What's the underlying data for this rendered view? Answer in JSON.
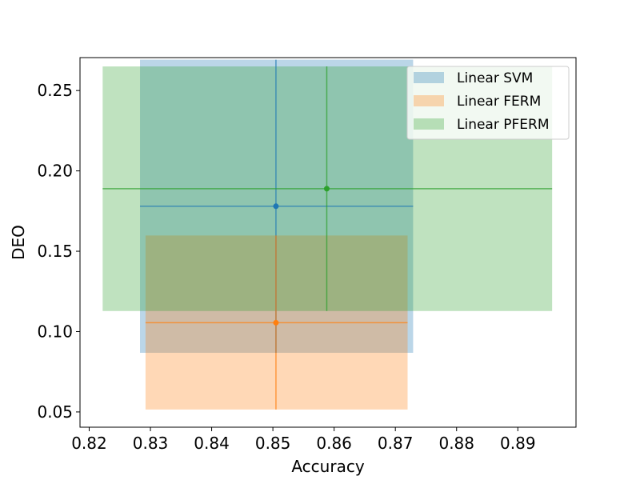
{
  "chart_data": {
    "type": "scatter",
    "title": "",
    "xlabel": "Accuracy",
    "ylabel": "DEO",
    "xlim": [
      0.8185,
      0.8995
    ],
    "ylim": [
      0.0405,
      0.2705
    ],
    "xticks": [
      0.82,
      0.83,
      0.84,
      0.85,
      0.86,
      0.87,
      0.88,
      0.89
    ],
    "xtick_labels": [
      "0.82",
      "0.83",
      "0.84",
      "0.85",
      "0.86",
      "0.87",
      "0.88",
      "0.89"
    ],
    "yticks": [
      0.05,
      0.1,
      0.15,
      0.2,
      0.25
    ],
    "ytick_labels": [
      "0.05",
      "0.10",
      "0.15",
      "0.20",
      "0.25"
    ],
    "grid": false,
    "legend_position": "top-right",
    "series": [
      {
        "name": "Linear SVM",
        "color": "#1f77b4",
        "x": 0.8505,
        "y": 0.178,
        "x_range": [
          0.8283,
          0.8729
        ],
        "y_range": [
          0.0868,
          0.2692
        ]
      },
      {
        "name": "Linear FERM",
        "color": "#ff7f0e",
        "x": 0.8505,
        "y": 0.1055,
        "x_range": [
          0.8292,
          0.872
        ],
        "y_range": [
          0.0515,
          0.1598
        ]
      },
      {
        "name": "Linear PFERM",
        "color": "#2ca02c",
        "x": 0.8588,
        "y": 0.1889,
        "x_range": [
          0.8222,
          0.8956
        ],
        "y_range": [
          0.1128,
          0.265
        ]
      }
    ]
  }
}
